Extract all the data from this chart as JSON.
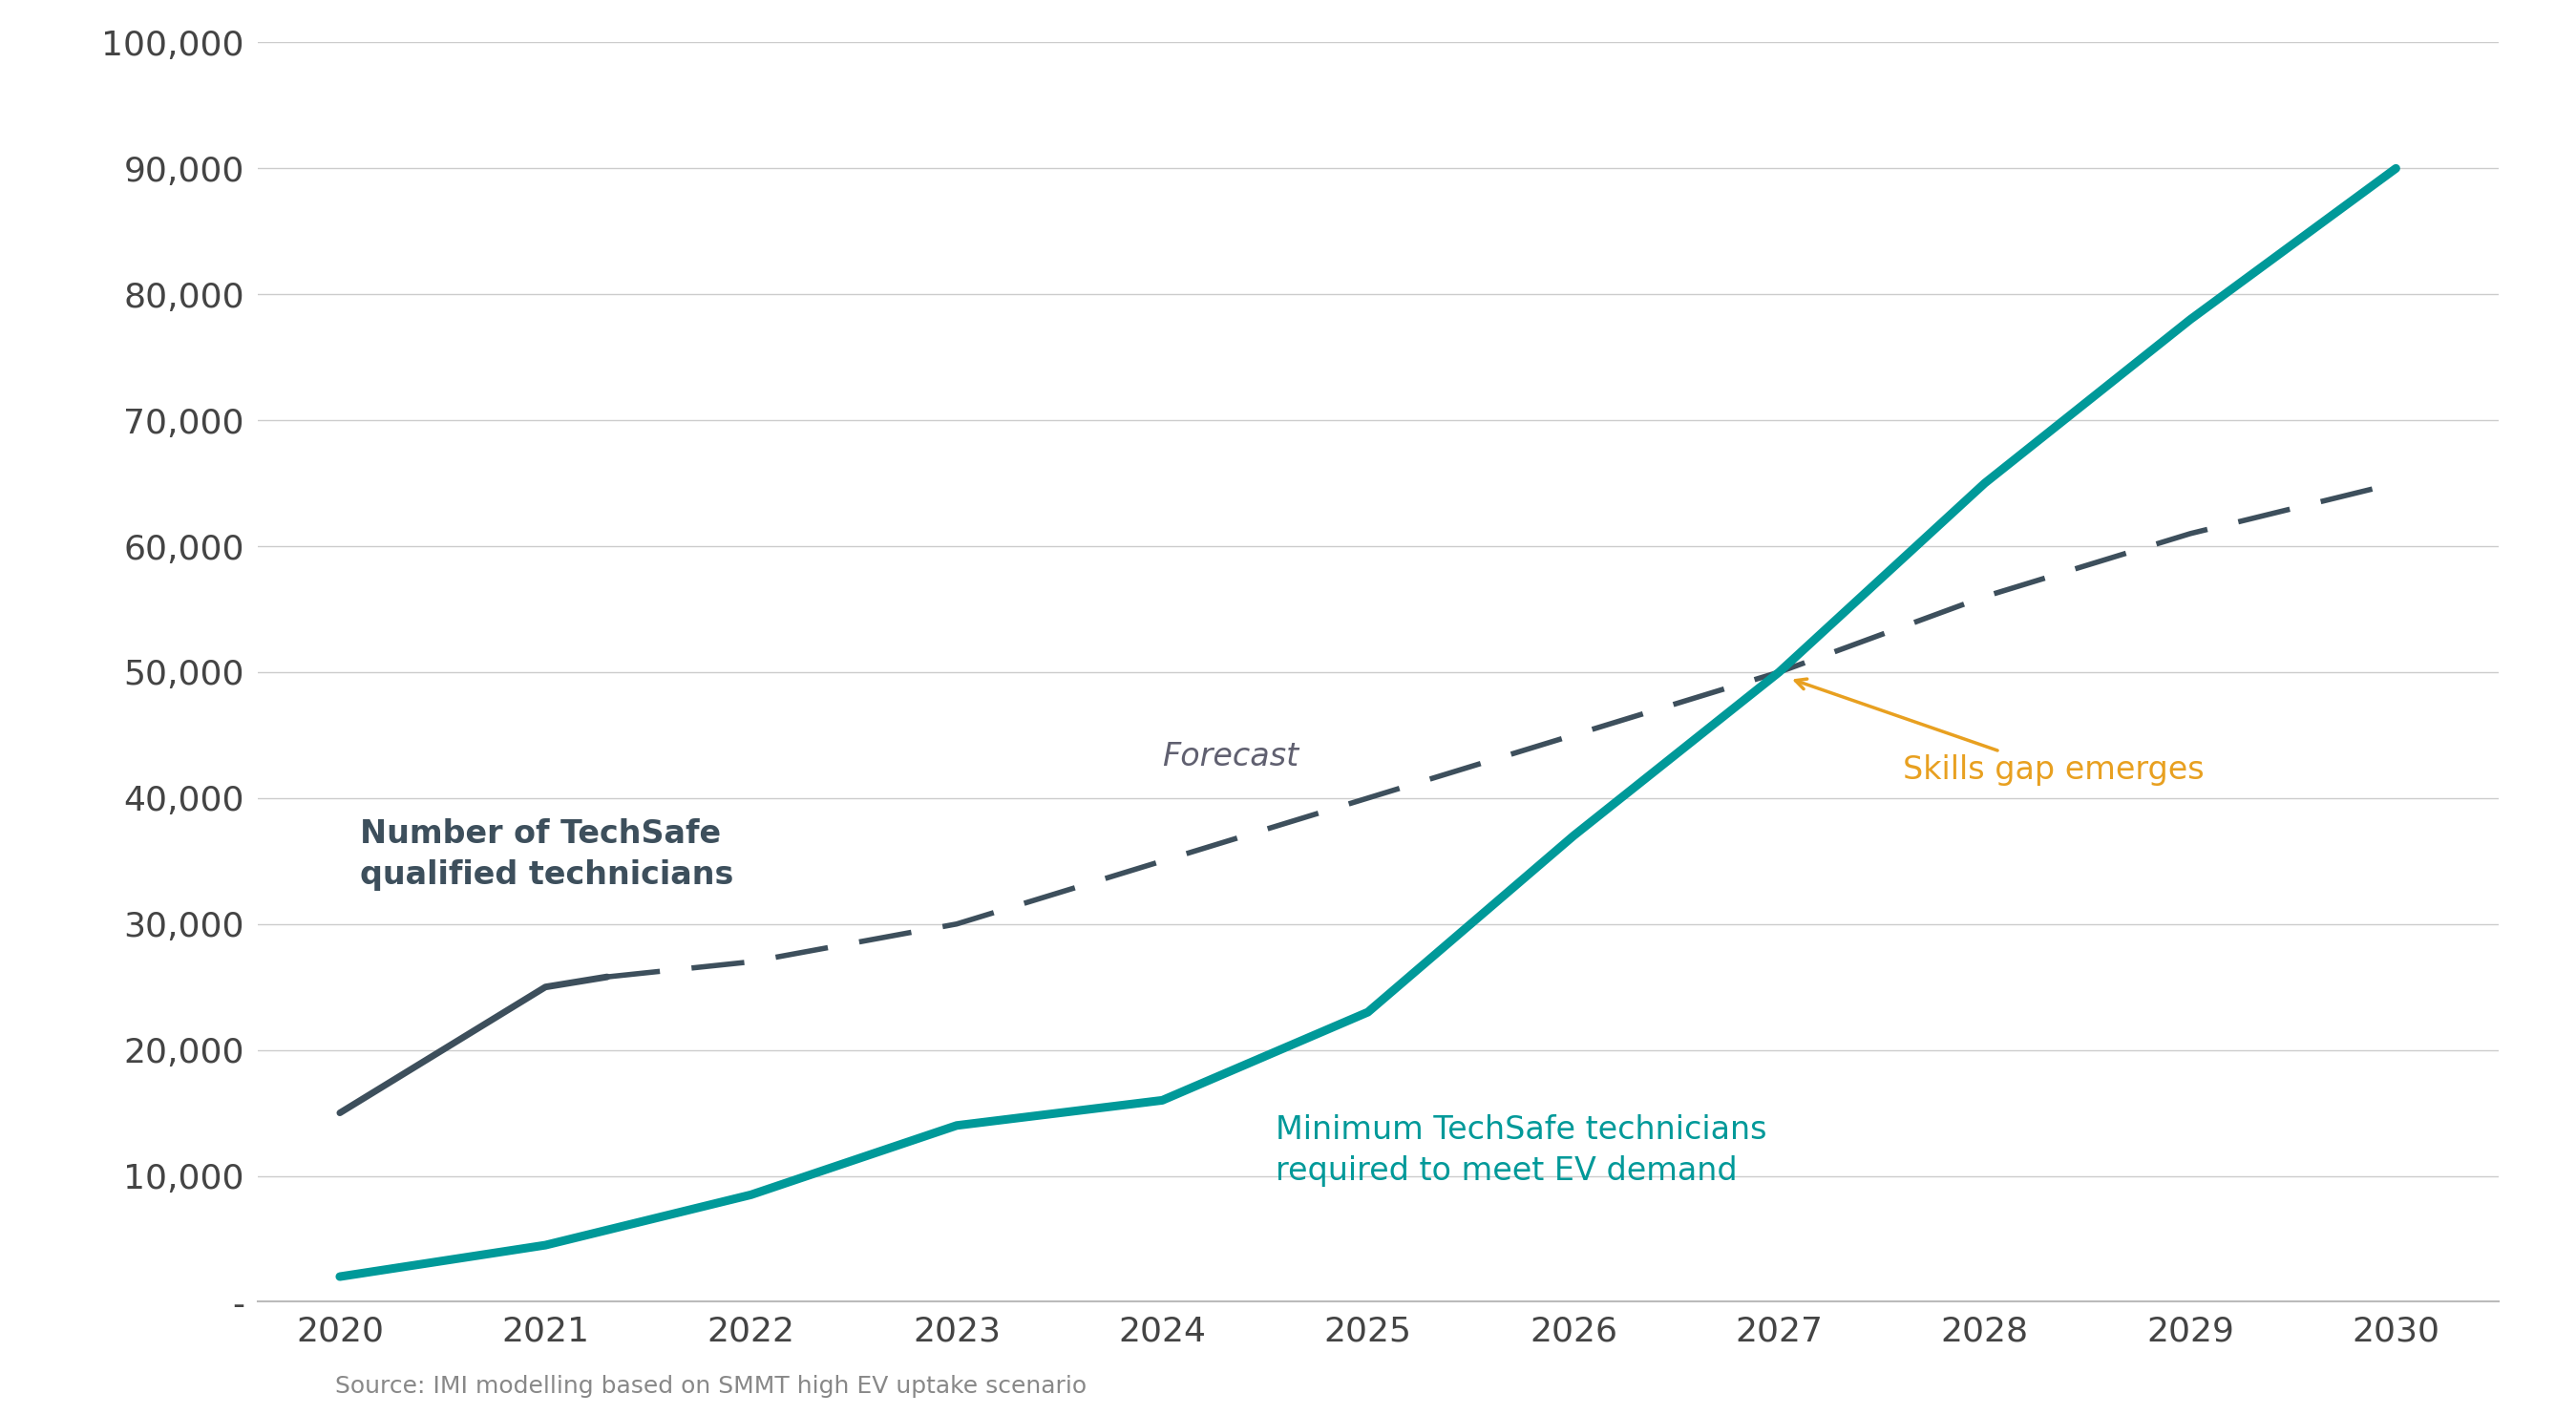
{
  "forecast_solid_years": [
    2020,
    2020.5,
    2021,
    2021.3
  ],
  "forecast_solid_values": [
    15000,
    20000,
    25000,
    25800
  ],
  "forecast_dash_years": [
    2021.3,
    2022,
    2023,
    2024,
    2025,
    2026,
    2027,
    2028,
    2029,
    2030
  ],
  "forecast_dash_values": [
    25800,
    27000,
    30000,
    35000,
    40000,
    45000,
    50000,
    56000,
    61000,
    65000
  ],
  "ev_demand_years": [
    2020,
    2021,
    2022,
    2023,
    2024,
    2025,
    2026,
    2027,
    2028,
    2029,
    2030
  ],
  "ev_demand_values": [
    2000,
    4500,
    8500,
    14000,
    16000,
    23000,
    37000,
    50000,
    65000,
    78000,
    90000
  ],
  "forecast_color": "#3d4f5c",
  "ev_demand_color": "#009999",
  "background_color": "#ffffff",
  "grid_color": "#cccccc",
  "ylim": [
    0,
    100000
  ],
  "ytick_labels": [
    "-",
    "10,000",
    "20,000",
    "30,000",
    "40,000",
    "50,000",
    "60,000",
    "70,000",
    "80,000",
    "90,000",
    "100,000"
  ],
  "ytick_values": [
    0,
    10000,
    20000,
    30000,
    40000,
    50000,
    60000,
    70000,
    80000,
    90000,
    100000
  ],
  "xlim": [
    2019.6,
    2030.5
  ],
  "annotation_skills_gap_text": "Skills gap emerges",
  "annotation_skills_gap_color": "#E8A020",
  "annotation_forecast_text": "Forecast",
  "annotation_forecast_color": "#606070",
  "label_techsafe_text": "Number of TechSafe\nqualified technicians",
  "label_techsafe_color": "#3d4f5c",
  "label_ev_demand_text": "Minimum TechSafe technicians\nrequired to meet EV demand",
  "label_ev_demand_color": "#009999",
  "source": "Source: IMI modelling based on SMMT high EV uptake scenario",
  "source_color": "#888888"
}
